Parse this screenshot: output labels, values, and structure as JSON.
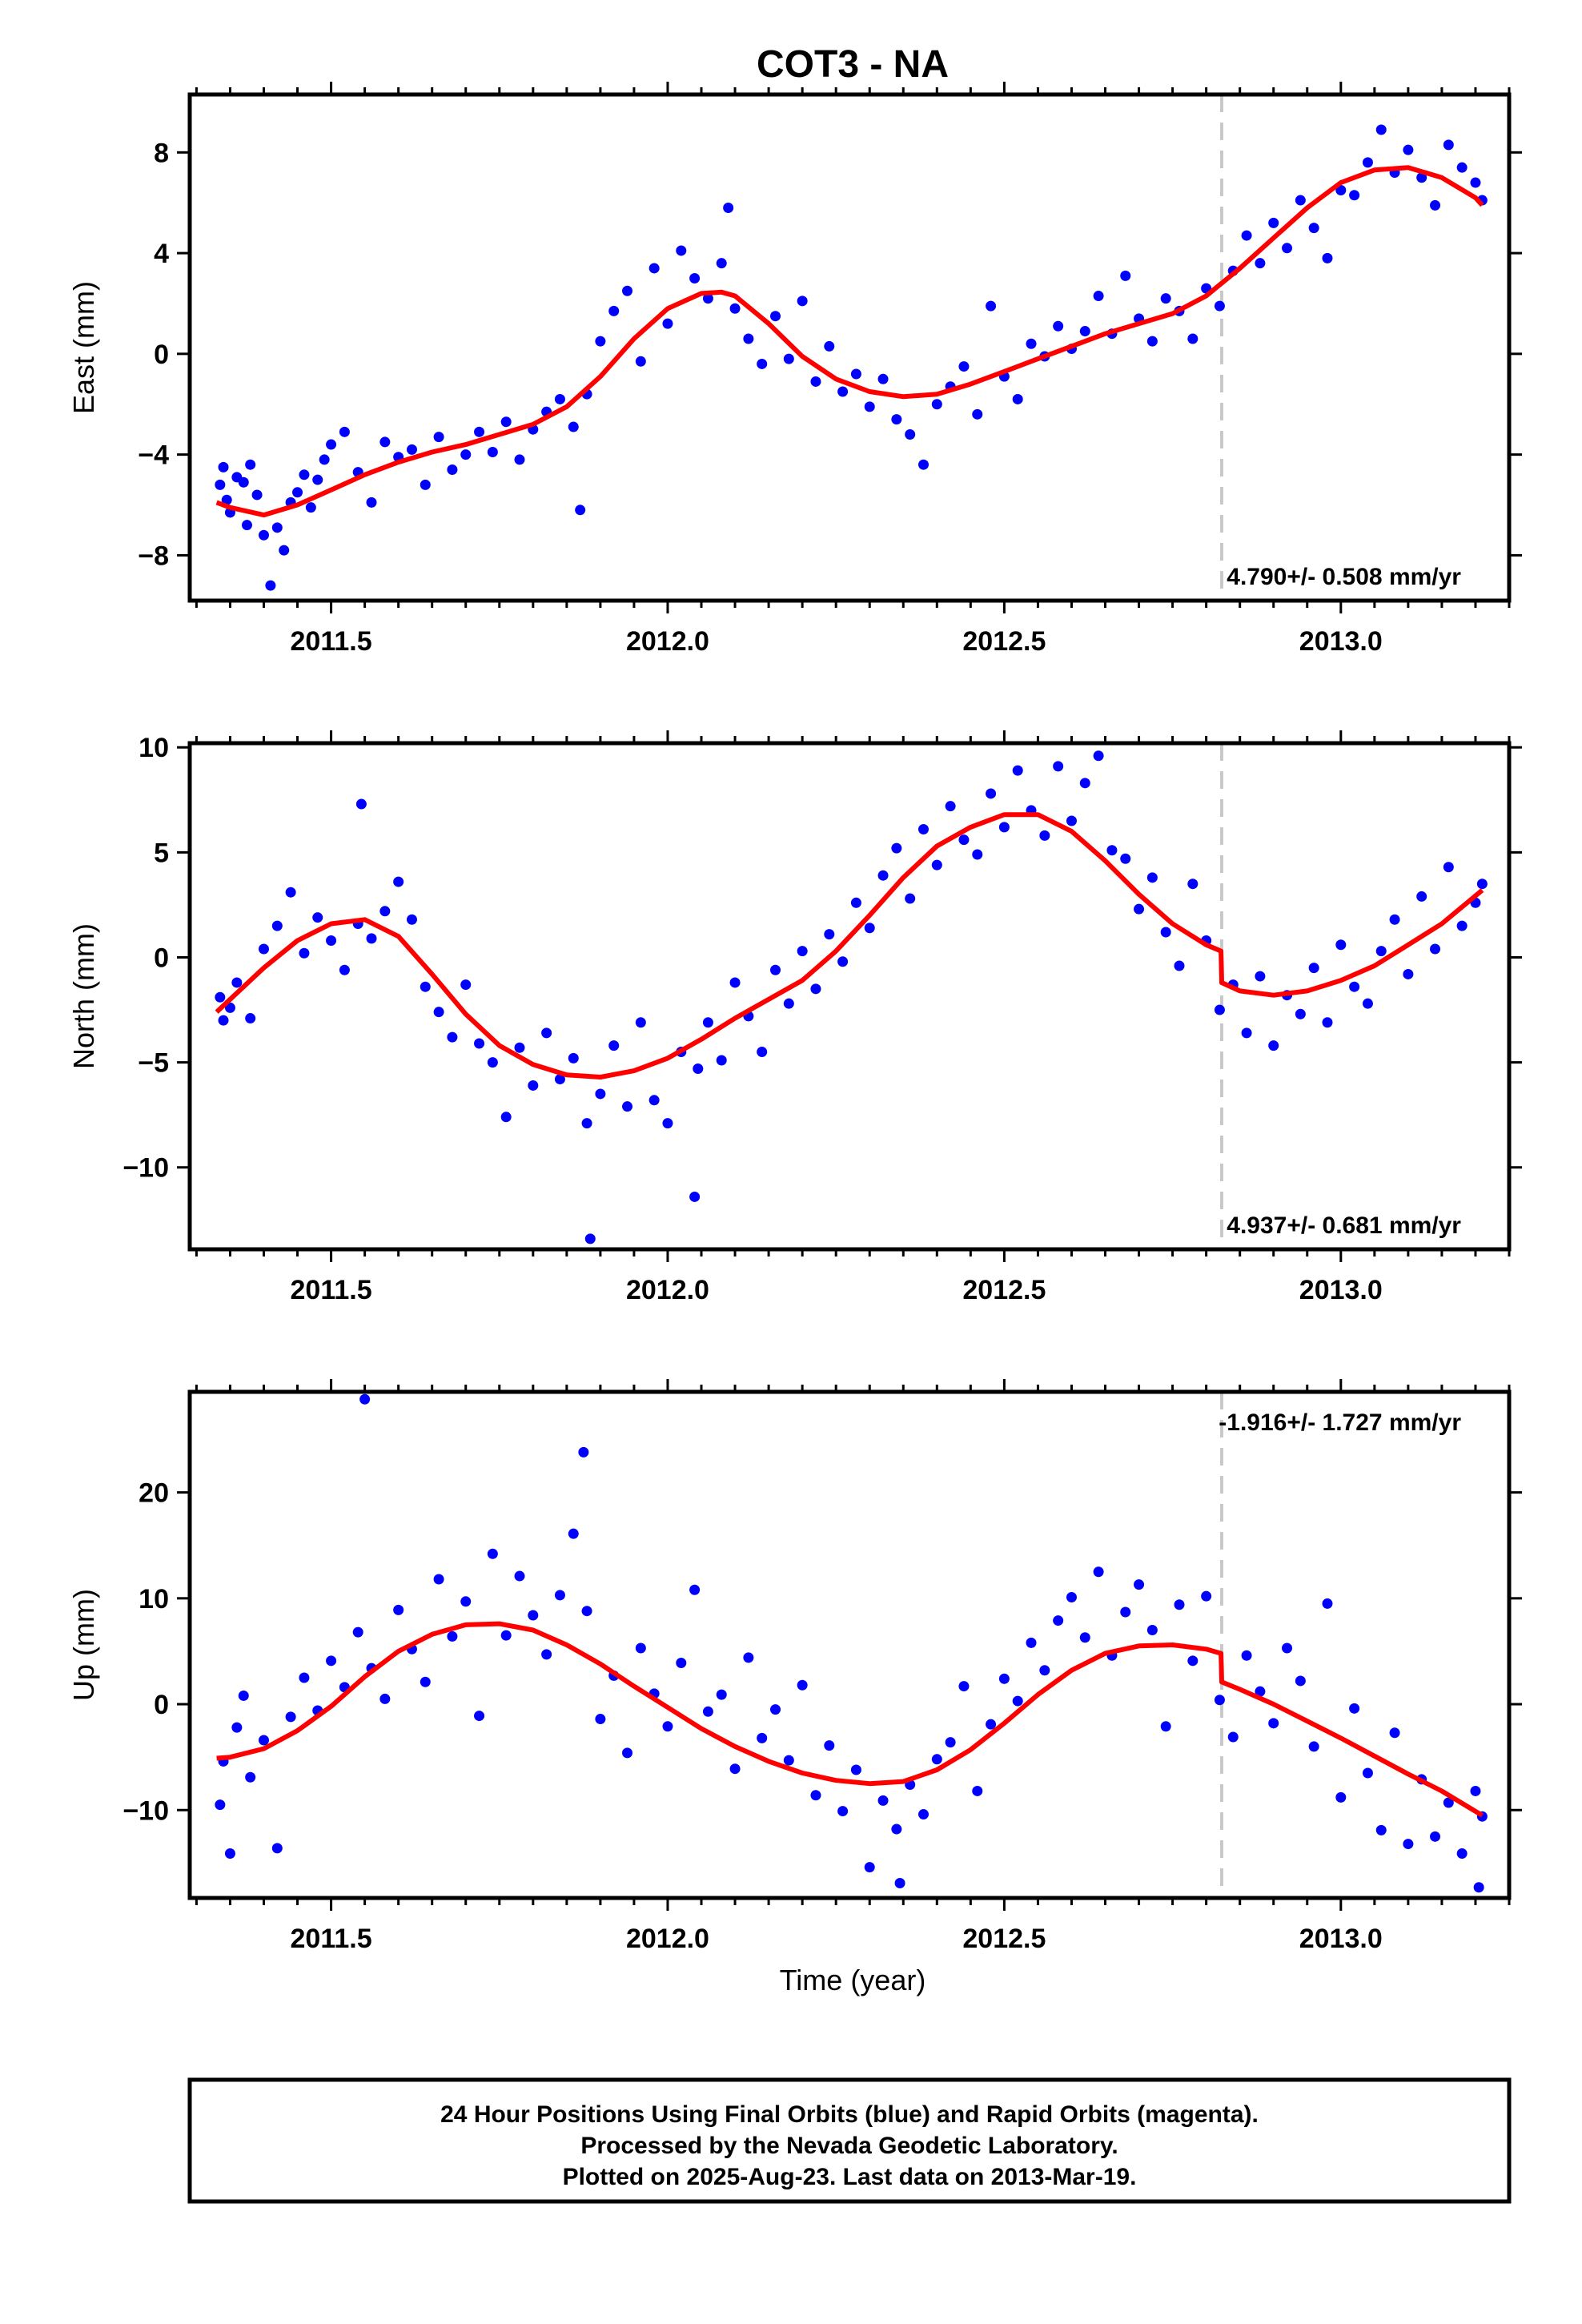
{
  "title": "COT3 - NA",
  "xlabel": "Time (year)",
  "footer": {
    "lines": [
      "24 Hour Positions Using Final Orbits (blue) and Rapid Orbits (magenta).",
      "Processed by the Nevada Geodetic Laboratory.",
      "Plotted on 2025-Aug-23. Last data on 2013-Mar-19."
    ]
  },
  "colors": {
    "points": "#0000ff",
    "model": "#ff0000",
    "step": "#c8c8c8",
    "frame": "#000000"
  },
  "chart_data": [
    {
      "type": "scatter",
      "ylabel": "East (mm)",
      "rate_label": "4.790+/- 0.508 mm/yr",
      "rate_position": "bottom-right",
      "xlim": [
        2011.29,
        2013.25
      ],
      "ylim": [
        -9.8,
        10.3
      ],
      "yticks": [
        -8,
        -4,
        0,
        4,
        8
      ],
      "xticks": [
        2011.5,
        2012.0,
        2012.5,
        2013.0
      ],
      "step_epoch": 2012.823,
      "model": {
        "x": [
          2011.33,
          2011.35,
          2011.4,
          2011.45,
          2011.5,
          2011.55,
          2011.6,
          2011.65,
          2011.7,
          2011.75,
          2011.8,
          2011.85,
          2011.9,
          2011.95,
          2012.0,
          2012.05,
          2012.08,
          2012.1,
          2012.15,
          2012.2,
          2012.25,
          2012.3,
          2012.35,
          2012.4,
          2012.45,
          2012.5,
          2012.55,
          2012.6,
          2012.65,
          2012.7,
          2012.75,
          2012.8,
          2012.85,
          2012.9,
          2012.95,
          2013.0,
          2013.05,
          2013.1,
          2013.15,
          2013.2,
          2013.21
        ],
        "y": [
          -5.9,
          -6.1,
          -6.4,
          -6.0,
          -5.4,
          -4.8,
          -4.3,
          -3.9,
          -3.6,
          -3.2,
          -2.8,
          -2.1,
          -0.9,
          0.6,
          1.8,
          2.4,
          2.45,
          2.3,
          1.2,
          -0.1,
          -1.0,
          -1.5,
          -1.7,
          -1.6,
          -1.2,
          -0.7,
          -0.2,
          0.3,
          0.8,
          1.2,
          1.6,
          2.3,
          3.4,
          4.6,
          5.8,
          6.8,
          7.3,
          7.4,
          7.0,
          6.2,
          5.9
        ]
      },
      "points": {
        "x": [
          2011.335,
          2011.34,
          2011.345,
          2011.35,
          2011.36,
          2011.37,
          2011.375,
          2011.38,
          2011.39,
          2011.4,
          2011.41,
          2011.42,
          2011.43,
          2011.44,
          2011.45,
          2011.46,
          2011.47,
          2011.48,
          2011.49,
          2011.5,
          2011.52,
          2011.54,
          2011.56,
          2011.58,
          2011.6,
          2011.62,
          2011.64,
          2011.66,
          2011.68,
          2011.7,
          2011.72,
          2011.74,
          2011.76,
          2011.78,
          2011.8,
          2011.82,
          2011.84,
          2011.86,
          2011.87,
          2011.88,
          2011.9,
          2011.92,
          2011.94,
          2011.96,
          2011.98,
          2012.0,
          2012.02,
          2012.04,
          2012.06,
          2012.08,
          2012.09,
          2012.1,
          2012.12,
          2012.14,
          2012.16,
          2012.18,
          2012.2,
          2012.22,
          2012.24,
          2012.26,
          2012.28,
          2012.3,
          2012.32,
          2012.34,
          2012.36,
          2012.38,
          2012.4,
          2012.42,
          2012.44,
          2012.46,
          2012.48,
          2012.5,
          2012.52,
          2012.54,
          2012.56,
          2012.58,
          2012.6,
          2012.62,
          2012.64,
          2012.66,
          2012.68,
          2012.7,
          2012.72,
          2012.74,
          2012.76,
          2012.78,
          2012.8,
          2012.82,
          2012.84,
          2012.86,
          2012.88,
          2012.9,
          2012.92,
          2012.94,
          2012.96,
          2012.98,
          2013.0,
          2013.02,
          2013.04,
          2013.06,
          2013.08,
          2013.1,
          2013.12,
          2013.14,
          2013.16,
          2013.18,
          2013.2,
          2013.21
        ],
        "y": [
          -5.2,
          -4.5,
          -5.8,
          -6.3,
          -4.9,
          -5.1,
          -6.8,
          -4.4,
          -5.6,
          -7.2,
          -9.2,
          -6.9,
          -7.8,
          -5.9,
          -5.5,
          -4.8,
          -6.1,
          -5.0,
          -4.2,
          -3.6,
          -3.1,
          -4.7,
          -5.9,
          -3.5,
          -4.1,
          -3.8,
          -5.2,
          -3.3,
          -4.6,
          -4.0,
          -3.1,
          -3.9,
          -2.7,
          -4.2,
          -3.0,
          -2.3,
          -1.8,
          -2.9,
          -6.2,
          -1.6,
          0.5,
          1.7,
          2.5,
          -0.3,
          3.4,
          1.2,
          4.1,
          3.0,
          2.2,
          3.6,
          5.8,
          1.8,
          0.6,
          -0.4,
          1.5,
          -0.2,
          2.1,
          -1.1,
          0.3,
          -1.5,
          -0.8,
          -2.1,
          -1.0,
          -2.6,
          -3.2,
          -4.4,
          -2.0,
          -1.3,
          -0.5,
          -2.4,
          1.9,
          -0.9,
          -1.8,
          0.4,
          -0.1,
          1.1,
          0.2,
          0.9,
          2.3,
          0.8,
          3.1,
          1.4,
          0.5,
          2.2,
          1.7,
          0.6,
          2.6,
          1.9,
          3.3,
          4.7,
          3.6,
          5.2,
          4.2,
          6.1,
          5.0,
          3.8,
          6.5,
          6.3,
          7.6,
          8.9,
          7.2,
          8.1,
          7.0,
          5.9,
          8.3,
          7.4,
          6.8,
          6.1
        ]
      }
    },
    {
      "type": "scatter",
      "ylabel": "North (mm)",
      "rate_label": "4.937+/- 0.681 mm/yr",
      "rate_position": "bottom-right",
      "xlim": [
        2011.29,
        2013.25
      ],
      "ylim": [
        -13.9,
        10.2
      ],
      "yticks": [
        -10,
        -5,
        0,
        5,
        10
      ],
      "xticks": [
        2011.5,
        2012.0,
        2012.5,
        2013.0
      ],
      "step_epoch": 2012.823,
      "model": {
        "x": [
          2011.33,
          2011.35,
          2011.4,
          2011.45,
          2011.5,
          2011.55,
          2011.6,
          2011.65,
          2011.7,
          2011.75,
          2011.8,
          2011.85,
          2011.9,
          2011.95,
          2012.0,
          2012.05,
          2012.1,
          2012.15,
          2012.2,
          2012.25,
          2012.3,
          2012.35,
          2012.4,
          2012.45,
          2012.5,
          2012.55,
          2012.6,
          2012.65,
          2012.7,
          2012.75,
          2012.8,
          2012.822,
          2012.823,
          2012.85,
          2012.9,
          2012.95,
          2013.0,
          2013.05,
          2013.1,
          2013.15,
          2013.21
        ],
        "y": [
          -2.6,
          -2.0,
          -0.5,
          0.8,
          1.6,
          1.8,
          1.0,
          -0.8,
          -2.7,
          -4.2,
          -5.1,
          -5.6,
          -5.7,
          -5.4,
          -4.8,
          -3.9,
          -2.9,
          -2.0,
          -1.1,
          0.3,
          2.0,
          3.8,
          5.3,
          6.2,
          6.8,
          6.8,
          6.0,
          4.6,
          3.0,
          1.6,
          0.6,
          0.3,
          -1.2,
          -1.6,
          -1.8,
          -1.6,
          -1.1,
          -0.4,
          0.6,
          1.6,
          3.2
        ]
      },
      "points": {
        "x": [
          2011.335,
          2011.34,
          2011.35,
          2011.36,
          2011.38,
          2011.4,
          2011.42,
          2011.44,
          2011.46,
          2011.48,
          2011.5,
          2011.52,
          2011.54,
          2011.545,
          2011.56,
          2011.58,
          2011.6,
          2011.62,
          2011.64,
          2011.66,
          2011.68,
          2011.7,
          2011.72,
          2011.74,
          2011.76,
          2011.78,
          2011.8,
          2011.82,
          2011.84,
          2011.86,
          2011.88,
          2011.885,
          2011.9,
          2011.92,
          2011.94,
          2011.96,
          2011.98,
          2012.0,
          2012.02,
          2012.04,
          2012.045,
          2012.06,
          2012.08,
          2012.1,
          2012.12,
          2012.14,
          2012.16,
          2012.18,
          2012.2,
          2012.22,
          2012.24,
          2012.26,
          2012.28,
          2012.3,
          2012.32,
          2012.34,
          2012.36,
          2012.38,
          2012.4,
          2012.42,
          2012.44,
          2012.46,
          2012.48,
          2012.5,
          2012.52,
          2012.54,
          2012.56,
          2012.58,
          2012.6,
          2012.62,
          2012.64,
          2012.66,
          2012.68,
          2012.7,
          2012.72,
          2012.74,
          2012.76,
          2012.78,
          2012.8,
          2012.82,
          2012.84,
          2012.86,
          2012.88,
          2012.9,
          2012.92,
          2012.94,
          2012.96,
          2012.98,
          2013.0,
          2013.02,
          2013.04,
          2013.06,
          2013.08,
          2013.1,
          2013.12,
          2013.14,
          2013.16,
          2013.18,
          2013.2,
          2013.21
        ],
        "y": [
          -1.9,
          -3.0,
          -2.4,
          -1.2,
          -2.9,
          0.4,
          1.5,
          3.1,
          0.2,
          1.9,
          0.8,
          -0.6,
          1.6,
          7.3,
          0.9,
          2.2,
          3.6,
          1.8,
          -1.4,
          -2.6,
          -3.8,
          -1.3,
          -4.1,
          -5.0,
          -7.6,
          -4.3,
          -6.1,
          -3.6,
          -5.8,
          -4.8,
          -7.9,
          -13.4,
          -6.5,
          -4.2,
          -7.1,
          -3.1,
          -6.8,
          -7.9,
          -4.5,
          -11.4,
          -5.3,
          -3.1,
          -4.9,
          -1.2,
          -2.8,
          -4.5,
          -0.6,
          -2.2,
          0.3,
          -1.5,
          1.1,
          -0.2,
          2.6,
          1.4,
          3.9,
          5.2,
          2.8,
          6.1,
          4.4,
          7.2,
          5.6,
          4.9,
          7.8,
          6.2,
          8.9,
          7.0,
          5.8,
          9.1,
          6.5,
          8.3,
          9.6,
          5.1,
          4.7,
          2.3,
          3.8,
          1.2,
          -0.4,
          3.5,
          0.8,
          -2.5,
          -1.3,
          -3.6,
          -0.9,
          -4.2,
          -1.8,
          -2.7,
          -0.5,
          -3.1,
          0.6,
          -1.4,
          -2.2,
          0.3,
          1.8,
          -0.8,
          2.9,
          0.4,
          4.3,
          1.5,
          2.6,
          3.5
        ]
      }
    },
    {
      "type": "scatter",
      "ylabel": "Up (mm)",
      "rate_label": "-1.916+/- 1.727 mm/yr",
      "rate_position": "top-right",
      "xlim": [
        2011.29,
        2013.25
      ],
      "ylim": [
        -18.3,
        29.5
      ],
      "yticks": [
        -10,
        0,
        10,
        20
      ],
      "xticks": [
        2011.5,
        2012.0,
        2012.5,
        2013.0
      ],
      "step_epoch": 2012.823,
      "model": {
        "x": [
          2011.33,
          2011.35,
          2011.4,
          2011.45,
          2011.5,
          2011.55,
          2011.6,
          2011.65,
          2011.7,
          2011.75,
          2011.8,
          2011.85,
          2011.9,
          2011.95,
          2012.0,
          2012.05,
          2012.1,
          2012.15,
          2012.2,
          2012.25,
          2012.3,
          2012.35,
          2012.4,
          2012.45,
          2012.5,
          2012.55,
          2012.6,
          2012.65,
          2012.7,
          2012.75,
          2012.8,
          2012.822,
          2012.823,
          2012.85,
          2012.9,
          2012.95,
          2013.0,
          2013.05,
          2013.1,
          2013.15,
          2013.21
        ],
        "y": [
          -5.1,
          -5.0,
          -4.2,
          -2.5,
          -0.2,
          2.6,
          5.0,
          6.6,
          7.5,
          7.6,
          7.0,
          5.6,
          3.8,
          1.7,
          -0.3,
          -2.3,
          -4.0,
          -5.4,
          -6.5,
          -7.2,
          -7.5,
          -7.3,
          -6.2,
          -4.3,
          -1.8,
          0.9,
          3.2,
          4.8,
          5.5,
          5.6,
          5.2,
          4.8,
          2.1,
          1.4,
          0.0,
          -1.6,
          -3.2,
          -4.9,
          -6.6,
          -8.2,
          -10.5
        ]
      },
      "points": {
        "x": [
          2011.335,
          2011.34,
          2011.35,
          2011.36,
          2011.37,
          2011.38,
          2011.4,
          2011.42,
          2011.44,
          2011.46,
          2011.48,
          2011.5,
          2011.52,
          2011.54,
          2011.55,
          2011.56,
          2011.58,
          2011.6,
          2011.62,
          2011.64,
          2011.66,
          2011.68,
          2011.7,
          2011.72,
          2011.74,
          2011.76,
          2011.78,
          2011.8,
          2011.82,
          2011.84,
          2011.86,
          2011.875,
          2011.88,
          2011.9,
          2011.92,
          2011.94,
          2011.96,
          2011.98,
          2012.0,
          2012.02,
          2012.04,
          2012.06,
          2012.08,
          2012.1,
          2012.12,
          2012.14,
          2012.16,
          2012.18,
          2012.2,
          2012.22,
          2012.24,
          2012.26,
          2012.28,
          2012.3,
          2012.32,
          2012.34,
          2012.345,
          2012.36,
          2012.38,
          2012.4,
          2012.42,
          2012.44,
          2012.46,
          2012.48,
          2012.5,
          2012.52,
          2012.54,
          2012.56,
          2012.58,
          2012.6,
          2012.62,
          2012.64,
          2012.66,
          2012.68,
          2012.7,
          2012.72,
          2012.74,
          2012.76,
          2012.78,
          2012.8,
          2012.82,
          2012.84,
          2012.86,
          2012.88,
          2012.9,
          2012.92,
          2012.94,
          2012.96,
          2012.98,
          2013.0,
          2013.02,
          2013.04,
          2013.06,
          2013.08,
          2013.1,
          2013.12,
          2013.14,
          2013.16,
          2013.18,
          2013.2,
          2013.205,
          2013.21
        ],
        "y": [
          -9.5,
          -5.4,
          -14.1,
          -2.2,
          0.8,
          -6.9,
          -3.4,
          -13.6,
          -1.2,
          2.5,
          -0.6,
          4.1,
          1.6,
          6.8,
          28.8,
          3.4,
          0.5,
          8.9,
          5.2,
          2.1,
          11.8,
          6.4,
          9.7,
          -1.1,
          14.2,
          6.5,
          12.1,
          8.4,
          4.7,
          10.3,
          16.1,
          23.8,
          8.8,
          -1.4,
          2.7,
          -4.6,
          5.3,
          1.0,
          -2.1,
          3.9,
          10.8,
          -0.7,
          0.9,
          -6.1,
          4.4,
          -3.2,
          -0.5,
          -5.3,
          1.8,
          -8.6,
          -3.9,
          -10.1,
          -6.2,
          -15.4,
          -9.1,
          -11.8,
          -16.9,
          -7.6,
          -10.4,
          -5.2,
          -3.6,
          1.7,
          -8.2,
          -1.9,
          2.4,
          0.3,
          5.8,
          3.2,
          7.9,
          10.1,
          6.3,
          12.5,
          4.6,
          8.7,
          11.3,
          7.0,
          -2.1,
          9.4,
          4.1,
          10.2,
          0.4,
          -3.1,
          4.6,
          1.2,
          -1.8,
          5.3,
          2.2,
          -4.0,
          9.5,
          -8.8,
          -0.4,
          -6.5,
          -11.9,
          -2.7,
          -13.2,
          -7.1,
          -12.5,
          -9.3,
          -14.1,
          -8.2,
          -17.3,
          -10.6
        ]
      }
    }
  ]
}
